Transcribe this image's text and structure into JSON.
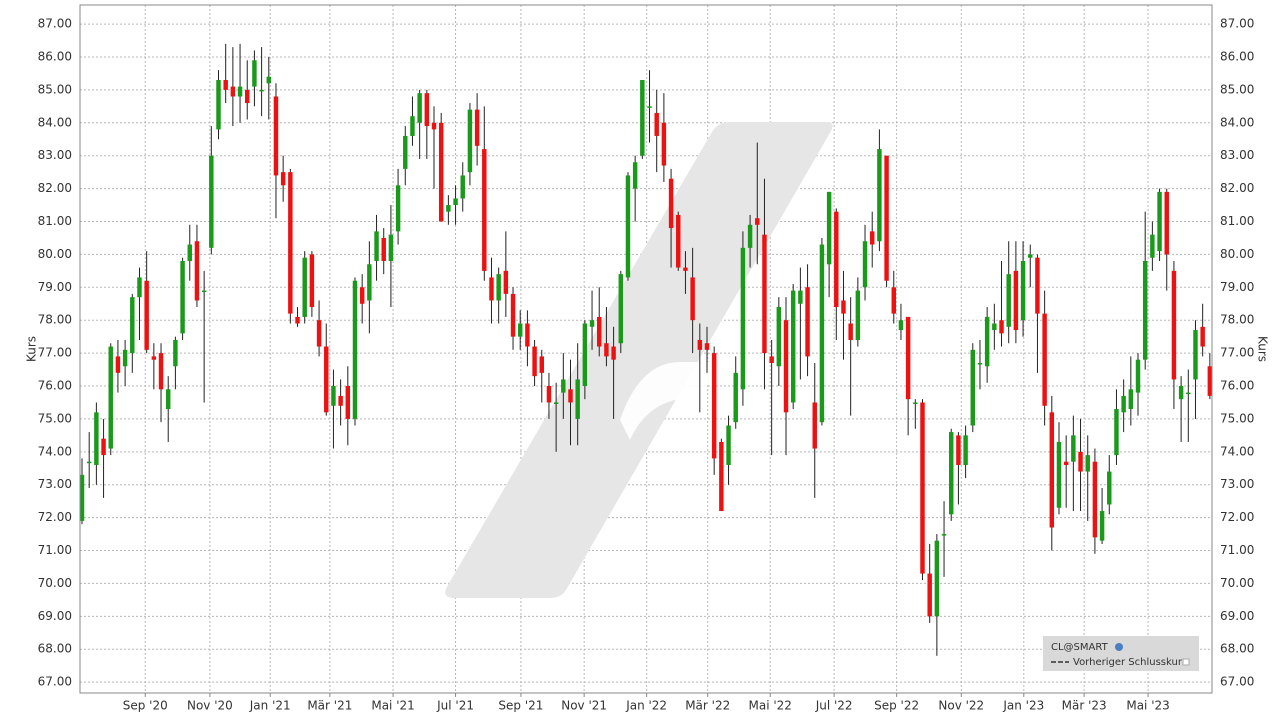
{
  "chart_data": {
    "type": "candlestick",
    "y_label": "Kurs",
    "legend": {
      "title": "CL@SMART",
      "items": [
        "Vorheriger Schlusskurs"
      ]
    },
    "up_color": "#1a9a1a",
    "down_color": "#ee1111",
    "grid": true,
    "xlim": [
      -0.28,
      157.3
    ],
    "ylim": [
      66.67,
      87.58
    ],
    "yticks": [
      {
        "value": 67,
        "label": "67.00"
      },
      {
        "value": 68,
        "label": "68.00"
      },
      {
        "value": 69,
        "label": "69.00"
      },
      {
        "value": 70,
        "label": "70.00"
      },
      {
        "value": 71,
        "label": "71.00"
      },
      {
        "value": 72,
        "label": "72.00"
      },
      {
        "value": 73,
        "label": "73.00"
      },
      {
        "value": 74,
        "label": "74.00"
      },
      {
        "value": 75,
        "label": "75.00"
      },
      {
        "value": 76,
        "label": "76.00"
      },
      {
        "value": 77,
        "label": "77.00"
      },
      {
        "value": 78,
        "label": "78.00"
      },
      {
        "value": 79,
        "label": "79.00"
      },
      {
        "value": 80,
        "label": "80.00"
      },
      {
        "value": 81,
        "label": "81.00"
      },
      {
        "value": 82,
        "label": "82.00"
      },
      {
        "value": 83,
        "label": "83.00"
      },
      {
        "value": 84,
        "label": "84.00"
      },
      {
        "value": 85,
        "label": "85.00"
      },
      {
        "value": 86,
        "label": "86.00"
      },
      {
        "value": 87,
        "label": "87.00"
      }
    ],
    "xticks": [
      {
        "value": 8.8,
        "label": "Sep '20"
      },
      {
        "value": 17.8,
        "label": "Nov '20"
      },
      {
        "value": 26.2,
        "label": "Jan '21"
      },
      {
        "value": 34.5,
        "label": "Mär '21"
      },
      {
        "value": 43.3,
        "label": "Mai '21"
      },
      {
        "value": 52.0,
        "label": "Jul '21"
      },
      {
        "value": 61.1,
        "label": "Sep '21"
      },
      {
        "value": 69.9,
        "label": "Nov '21"
      },
      {
        "value": 78.6,
        "label": "Jan '22"
      },
      {
        "value": 87.1,
        "label": "Mär '22"
      },
      {
        "value": 95.8,
        "label": "Mai '22"
      },
      {
        "value": 104.7,
        "label": "Jul '22"
      },
      {
        "value": 113.4,
        "label": "Sep '22"
      },
      {
        "value": 122.4,
        "label": "Nov '22"
      },
      {
        "value": 131.1,
        "label": "Jan '23"
      },
      {
        "value": 139.5,
        "label": "Mär '23"
      },
      {
        "value": 148.4,
        "label": "Mai '23"
      }
    ],
    "ohlc": [
      [
        71.9,
        73.8,
        71.8,
        73.3
      ],
      [
        73.7,
        74.6,
        72.9,
        73.7
      ],
      [
        73.6,
        75.5,
        73.0,
        75.2
      ],
      [
        74.4,
        75.0,
        72.6,
        73.9
      ],
      [
        74.1,
        77.3,
        73.9,
        77.2
      ],
      [
        76.9,
        77.4,
        75.8,
        76.4
      ],
      [
        76.6,
        77.4,
        76.0,
        77.1
      ],
      [
        77.0,
        78.8,
        76.4,
        78.7
      ],
      [
        78.7,
        79.6,
        77.4,
        79.3
      ],
      [
        79.2,
        80.1,
        77.0,
        77.1
      ],
      [
        76.9,
        77.3,
        75.9,
        76.8
      ],
      [
        77.0,
        77.3,
        74.9,
        75.9
      ],
      [
        75.3,
        76.3,
        74.3,
        75.9
      ],
      [
        76.6,
        77.5,
        75.9,
        77.4
      ],
      [
        77.6,
        79.9,
        77.4,
        79.8
      ],
      [
        79.8,
        80.9,
        79.2,
        80.3
      ],
      [
        80.4,
        80.9,
        78.4,
        78.6
      ],
      [
        78.9,
        79.5,
        75.5,
        78.9
      ],
      [
        80.2,
        83.9,
        80.0,
        83.0
      ],
      [
        83.8,
        85.6,
        83.5,
        85.3
      ],
      [
        85.3,
        86.4,
        84.6,
        85.0
      ],
      [
        85.1,
        86.3,
        83.9,
        84.8
      ],
      [
        84.8,
        86.4,
        84.0,
        85.1
      ],
      [
        85.0,
        85.9,
        84.1,
        84.6
      ],
      [
        85.1,
        86.2,
        84.5,
        85.9
      ],
      [
        85.0,
        86.3,
        84.2,
        85.0
      ],
      [
        85.2,
        86.0,
        84.1,
        85.4
      ],
      [
        84.8,
        85.2,
        81.1,
        82.4
      ],
      [
        82.5,
        83.0,
        81.6,
        82.1
      ],
      [
        82.5,
        82.6,
        77.9,
        78.2
      ],
      [
        78.1,
        78.4,
        77.8,
        77.9
      ],
      [
        78.1,
        80.1,
        77.9,
        79.9
      ],
      [
        80.0,
        80.1,
        78.1,
        78.4
      ],
      [
        78.0,
        78.6,
        76.9,
        77.2
      ],
      [
        77.2,
        77.9,
        75.1,
        75.2
      ],
      [
        75.4,
        76.5,
        74.1,
        76.0
      ],
      [
        75.7,
        76.2,
        74.8,
        75.4
      ],
      [
        76.0,
        76.6,
        74.2,
        75.0
      ],
      [
        75.0,
        79.3,
        74.8,
        79.2
      ],
      [
        79.0,
        79.4,
        77.9,
        78.5
      ],
      [
        78.6,
        80.4,
        77.6,
        79.7
      ],
      [
        79.8,
        81.2,
        79.2,
        80.7
      ],
      [
        80.5,
        80.8,
        79.4,
        79.8
      ],
      [
        79.8,
        81.5,
        78.4,
        80.6
      ],
      [
        80.7,
        82.6,
        80.3,
        82.1
      ],
      [
        82.6,
        83.9,
        82.1,
        83.6
      ],
      [
        83.6,
        84.8,
        83.3,
        84.2
      ],
      [
        84.0,
        85.0,
        82.9,
        84.9
      ],
      [
        84.9,
        85.0,
        82.9,
        83.9
      ],
      [
        84.0,
        84.5,
        82.0,
        83.8
      ],
      [
        84.0,
        84.3,
        81.0,
        81.0
      ],
      [
        81.3,
        81.8,
        80.9,
        81.5
      ],
      [
        81.5,
        82.1,
        80.9,
        81.7
      ],
      [
        81.7,
        82.8,
        81.3,
        82.4
      ],
      [
        82.5,
        84.6,
        82.1,
        84.4
      ],
      [
        84.4,
        84.9,
        82.7,
        83.3
      ],
      [
        83.2,
        84.5,
        79.2,
        79.5
      ],
      [
        79.3,
        79.9,
        77.9,
        78.6
      ],
      [
        78.6,
        79.6,
        77.9,
        79.4
      ],
      [
        79.5,
        80.7,
        78.1,
        78.8
      ],
      [
        78.8,
        79.0,
        77.1,
        77.5
      ],
      [
        77.5,
        78.3,
        77.1,
        77.9
      ],
      [
        77.9,
        78.3,
        76.6,
        77.2
      ],
      [
        77.2,
        77.4,
        76.0,
        76.3
      ],
      [
        76.9,
        77.1,
        75.5,
        76.4
      ],
      [
        76.0,
        76.4,
        75.0,
        75.5
      ],
      [
        75.5,
        76.1,
        74.0,
        75.5
      ],
      [
        75.8,
        77.0,
        75.0,
        76.2
      ],
      [
        75.9,
        76.8,
        74.2,
        75.5
      ],
      [
        75.0,
        77.3,
        74.2,
        76.2
      ],
      [
        76.0,
        78.0,
        75.6,
        77.9
      ],
      [
        77.8,
        78.9,
        77.1,
        78.0
      ],
      [
        78.1,
        79.0,
        76.9,
        77.2
      ],
      [
        77.3,
        78.4,
        76.6,
        76.9
      ],
      [
        77.2,
        77.8,
        75.0,
        76.8
      ],
      [
        77.3,
        79.5,
        77.0,
        79.4
      ],
      [
        79.3,
        82.5,
        79.2,
        82.4
      ],
      [
        82.0,
        83.0,
        81.0,
        82.8
      ],
      [
        83.0,
        85.3,
        82.9,
        85.3
      ],
      [
        84.5,
        85.6,
        83.4,
        84.5
      ],
      [
        84.3,
        85.0,
        82.5,
        83.6
      ],
      [
        84.0,
        84.9,
        82.2,
        82.7
      ],
      [
        82.3,
        82.6,
        79.6,
        80.8
      ],
      [
        81.2,
        81.3,
        79.5,
        79.6
      ],
      [
        79.6,
        80.1,
        78.8,
        79.5
      ],
      [
        79.3,
        80.2,
        77.0,
        78.0
      ],
      [
        77.4,
        77.9,
        75.2,
        77.1
      ],
      [
        77.3,
        77.8,
        76.4,
        77.1
      ],
      [
        77.0,
        77.2,
        73.3,
        73.8
      ],
      [
        74.3,
        74.4,
        72.2,
        72.2
      ],
      [
        73.6,
        75.1,
        73.0,
        74.8
      ],
      [
        74.9,
        76.9,
        74.7,
        76.4
      ],
      [
        75.9,
        80.7,
        75.4,
        80.2
      ],
      [
        80.2,
        81.2,
        79.6,
        80.9
      ],
      [
        81.1,
        83.4,
        79.7,
        80.9
      ],
      [
        80.6,
        82.3,
        75.9,
        77.0
      ],
      [
        76.9,
        77.4,
        73.9,
        76.7
      ],
      [
        76.6,
        78.7,
        76.0,
        78.4
      ],
      [
        78.0,
        78.7,
        73.9,
        75.2
      ],
      [
        75.5,
        79.1,
        75.3,
        78.9
      ],
      [
        78.5,
        79.6,
        76.2,
        78.9
      ],
      [
        79.0,
        79.7,
        76.3,
        76.9
      ],
      [
        75.5,
        76.7,
        72.6,
        74.1
      ],
      [
        74.9,
        80.5,
        74.8,
        80.3
      ],
      [
        79.7,
        81.9,
        78.7,
        81.9
      ],
      [
        81.3,
        81.4,
        77.4,
        78.4
      ],
      [
        78.6,
        79.5,
        76.8,
        78.2
      ],
      [
        77.9,
        78.7,
        75.1,
        77.4
      ],
      [
        77.4,
        79.3,
        77.2,
        78.9
      ],
      [
        79.0,
        80.9,
        78.6,
        80.4
      ],
      [
        80.7,
        81.3,
        79.6,
        80.3
      ],
      [
        80.4,
        83.8,
        80.1,
        83.2
      ],
      [
        83.0,
        83.0,
        79.0,
        79.2
      ],
      [
        79.0,
        79.5,
        77.9,
        78.2
      ],
      [
        77.7,
        78.5,
        77.4,
        78.0
      ],
      [
        78.1,
        78.1,
        74.5,
        75.6
      ],
      [
        75.5,
        75.6,
        74.7,
        75.5
      ],
      [
        75.5,
        75.6,
        70.1,
        70.3
      ],
      [
        70.3,
        71.2,
        68.8,
        69.0
      ],
      [
        69.0,
        71.5,
        67.8,
        71.3
      ],
      [
        71.5,
        72.5,
        70.2,
        71.5
      ],
      [
        72.1,
        74.7,
        71.9,
        74.6
      ],
      [
        74.5,
        74.6,
        72.4,
        73.6
      ],
      [
        73.6,
        74.8,
        73.2,
        74.5
      ],
      [
        74.8,
        77.3,
        74.6,
        77.1
      ],
      [
        76.7,
        77.4,
        75.9,
        76.7
      ],
      [
        76.6,
        78.4,
        76.1,
        78.1
      ],
      [
        77.7,
        78.5,
        77.1,
        77.9
      ],
      [
        78.0,
        79.8,
        77.2,
        77.6
      ],
      [
        77.8,
        80.4,
        77.3,
        79.4
      ],
      [
        79.5,
        80.4,
        77.3,
        77.7
      ],
      [
        78.0,
        80.4,
        77.5,
        79.8
      ],
      [
        79.9,
        80.3,
        79.0,
        80.0
      ],
      [
        79.9,
        80.0,
        76.4,
        78.2
      ],
      [
        78.2,
        78.9,
        74.8,
        75.4
      ],
      [
        75.2,
        75.7,
        71.0,
        71.7
      ],
      [
        72.3,
        74.9,
        72.1,
        74.3
      ],
      [
        73.7,
        74.5,
        72.3,
        73.6
      ],
      [
        73.7,
        75.1,
        72.2,
        74.5
      ],
      [
        74.0,
        75.0,
        72.2,
        73.4
      ],
      [
        73.4,
        74.5,
        71.9,
        73.9
      ],
      [
        73.7,
        74.1,
        70.9,
        71.4
      ],
      [
        71.3,
        72.9,
        71.2,
        72.2
      ],
      [
        72.4,
        73.9,
        72.1,
        73.4
      ],
      [
        73.9,
        75.9,
        73.6,
        75.3
      ],
      [
        75.2,
        76.2,
        74.6,
        75.7
      ],
      [
        75.3,
        76.9,
        74.8,
        75.9
      ],
      [
        75.8,
        77.0,
        75.1,
        76.8
      ],
      [
        76.8,
        81.3,
        76.5,
        79.8
      ],
      [
        79.9,
        81.0,
        79.5,
        80.6
      ],
      [
        80.1,
        82.0,
        79.8,
        81.9
      ],
      [
        81.9,
        82.0,
        78.9,
        80.0
      ],
      [
        79.5,
        79.8,
        75.3,
        76.2
      ],
      [
        75.6,
        76.3,
        74.3,
        76.0
      ],
      [
        75.8,
        76.5,
        74.3,
        75.8
      ],
      [
        76.2,
        78.0,
        75.0,
        77.7
      ],
      [
        77.8,
        78.5,
        76.9,
        77.2
      ],
      [
        76.6,
        77.0,
        75.6,
        75.7
      ]
    ]
  }
}
